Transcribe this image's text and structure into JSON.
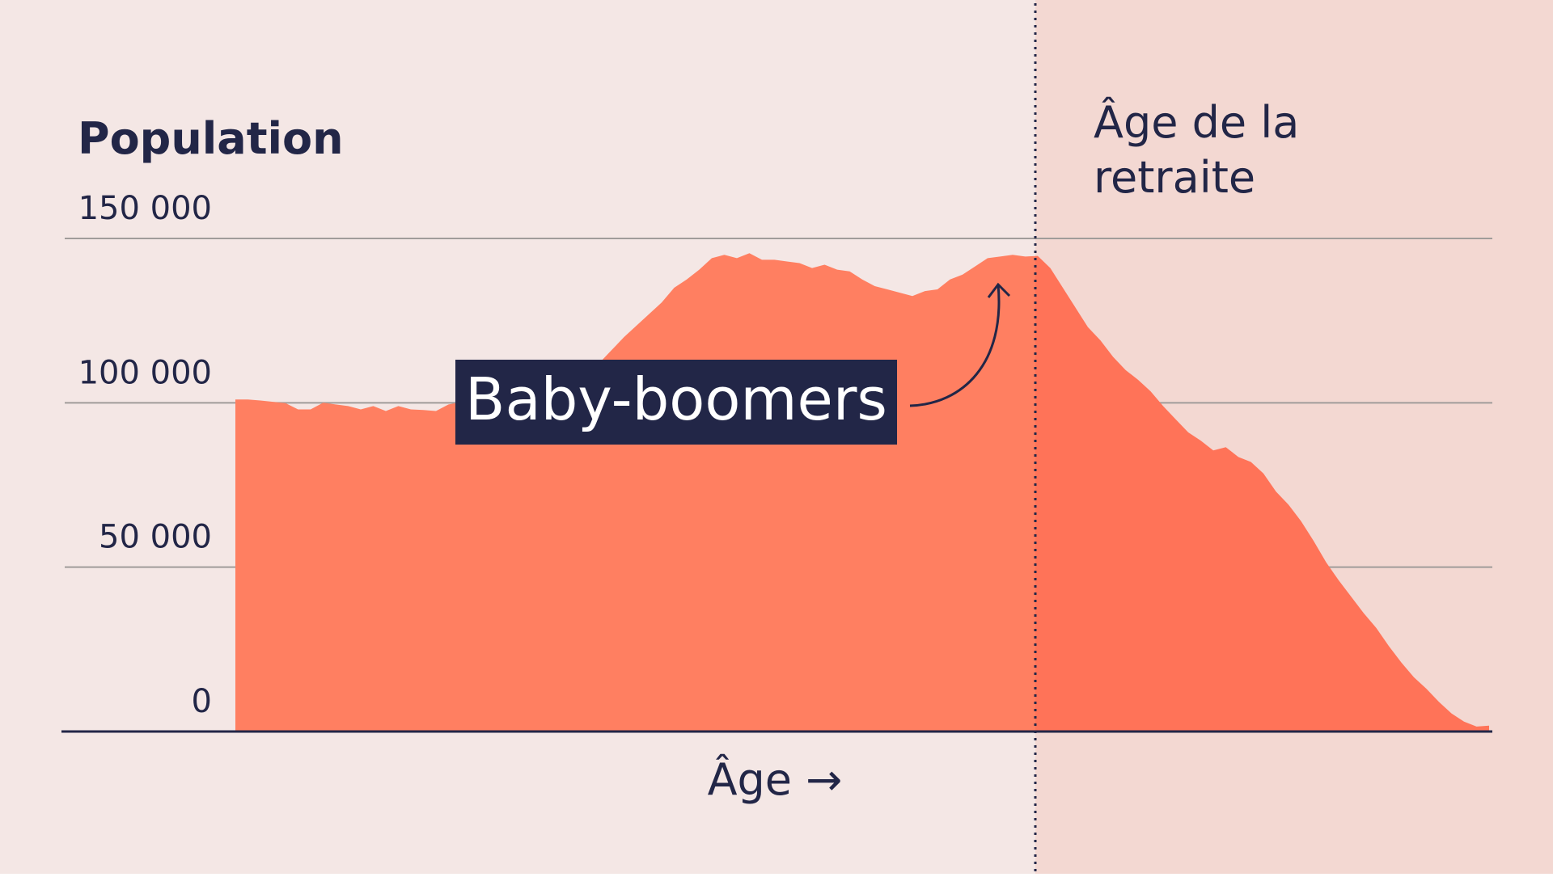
{
  "chart_data": {
    "type": "area",
    "title": "Population",
    "xlabel": "Âge →",
    "ylabel": "Population",
    "yticks": [
      {
        "value": 150000,
        "label": "150 000"
      },
      {
        "value": 100000,
        "label": "100 000"
      },
      {
        "value": 50000,
        "label": "50 000"
      },
      {
        "value": 0,
        "label": "0"
      }
    ],
    "ylim": [
      0,
      150000
    ],
    "x_range": [
      0,
      100
    ],
    "grid": true,
    "series": [
      {
        "values": [
          [
            0,
            101000
          ],
          [
            1,
            101000
          ],
          [
            2,
            100700
          ],
          [
            3,
            100300
          ],
          [
            4,
            99900
          ],
          [
            5,
            98000
          ],
          [
            6,
            98000
          ],
          [
            7,
            100000
          ],
          [
            8,
            99500
          ],
          [
            9,
            99000
          ],
          [
            10,
            98000
          ],
          [
            11,
            99000
          ],
          [
            12,
            97500
          ],
          [
            13,
            99000
          ],
          [
            14,
            98000
          ],
          [
            15,
            97800
          ],
          [
            16,
            97500
          ],
          [
            17,
            99500
          ],
          [
            18,
            100200
          ],
          [
            19,
            100700
          ],
          [
            20,
            101300
          ],
          [
            21,
            101700
          ],
          [
            22,
            102000
          ],
          [
            23,
            102500
          ],
          [
            24,
            103000
          ],
          [
            25,
            103800
          ],
          [
            26,
            105000
          ],
          [
            27,
            106500
          ],
          [
            28,
            108000
          ],
          [
            29,
            112000
          ],
          [
            30,
            116000
          ],
          [
            31,
            120000
          ],
          [
            32,
            123500
          ],
          [
            33,
            127000
          ],
          [
            34,
            130500
          ],
          [
            35,
            135000
          ],
          [
            36,
            137500
          ],
          [
            37,
            140500
          ],
          [
            38,
            144000
          ],
          [
            39,
            145000
          ],
          [
            40,
            144000
          ],
          [
            41,
            145500
          ],
          [
            42,
            143500
          ],
          [
            43,
            143500
          ],
          [
            44,
            143000
          ],
          [
            45,
            142500
          ],
          [
            46,
            141000
          ],
          [
            47,
            142000
          ],
          [
            48,
            140500
          ],
          [
            49,
            140000
          ],
          [
            50,
            137500
          ],
          [
            51,
            135500
          ],
          [
            52,
            134500
          ],
          [
            53,
            133500
          ],
          [
            54,
            132500
          ],
          [
            55,
            134000
          ],
          [
            56,
            134500
          ],
          [
            57,
            137500
          ],
          [
            58,
            139000
          ],
          [
            59,
            141500
          ],
          [
            60,
            144000
          ],
          [
            61,
            144500
          ],
          [
            62,
            145000
          ],
          [
            63,
            144500
          ],
          [
            64,
            144700
          ],
          [
            65,
            141000
          ],
          [
            66,
            135000
          ],
          [
            67,
            129000
          ],
          [
            68,
            123000
          ],
          [
            69,
            119000
          ],
          [
            70,
            114000
          ],
          [
            71,
            110000
          ],
          [
            72,
            107000
          ],
          [
            73,
            103500
          ],
          [
            74,
            99000
          ],
          [
            75,
            95000
          ],
          [
            76,
            91000
          ],
          [
            77,
            88500
          ],
          [
            78,
            85500
          ],
          [
            79,
            86500
          ],
          [
            80,
            83500
          ],
          [
            81,
            82000
          ],
          [
            82,
            78500
          ],
          [
            83,
            73000
          ],
          [
            84,
            69000
          ],
          [
            85,
            64000
          ],
          [
            86,
            58000
          ],
          [
            87,
            51500
          ],
          [
            88,
            46000
          ],
          [
            89,
            41000
          ],
          [
            90,
            36000
          ],
          [
            91,
            31500
          ],
          [
            92,
            26000
          ],
          [
            93,
            21000
          ],
          [
            94,
            16500
          ],
          [
            95,
            13000
          ],
          [
            96,
            9000
          ],
          [
            97,
            5500
          ],
          [
            98,
            3000
          ],
          [
            99,
            1500
          ],
          [
            100,
            1800
          ]
        ]
      }
    ],
    "annotations": [
      {
        "label": "Baby-boomers",
        "x": 64.5
      },
      {
        "label": "Âge de la retraite",
        "x": 64
      }
    ]
  },
  "colors": {
    "background_left": "#F4E7E5",
    "background_right": "#F3D8D2",
    "area_fill": "#FF7F61",
    "area_fill_retirement": "#FF7358",
    "text": "#222647",
    "gridline": "#A09C9A",
    "baseline": "#222647",
    "label_box": "#222647",
    "label_text": "#FFFFFF"
  }
}
